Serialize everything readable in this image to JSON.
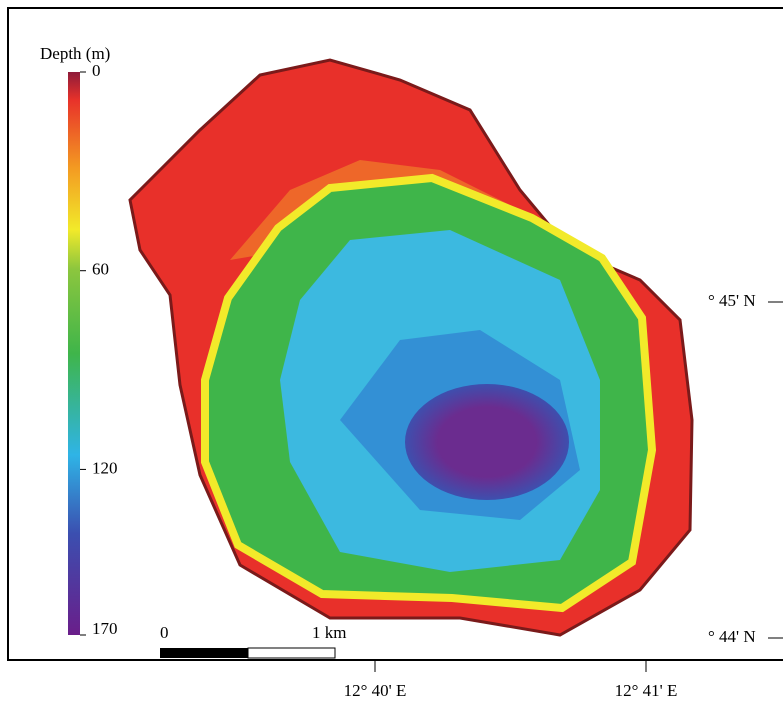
{
  "colorbar": {
    "title": "Depth (m)",
    "ticks": [
      0,
      60,
      120,
      170
    ]
  },
  "scale_bar": {
    "start_label": "0",
    "end_label": "1 km"
  },
  "latitude_labels": [
    "° 45' N",
    "° 44' N"
  ],
  "longitude_labels": [
    "12° 40' E",
    "12° 41' E"
  ]
}
